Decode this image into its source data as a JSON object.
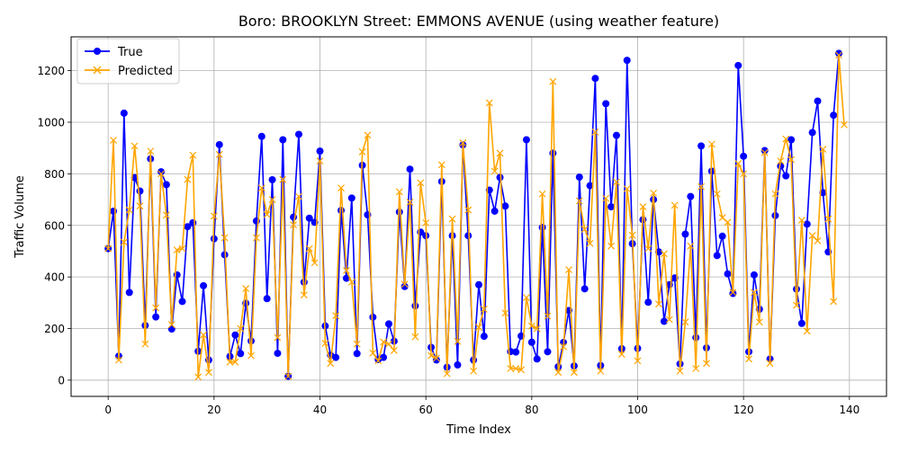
{
  "chart_data": {
    "type": "line",
    "title": "Boro: BROOKLYN Street: EMMONS AVENUE (using weather feature)",
    "xlabel": "Time Index",
    "ylabel": "Traffic Volume",
    "xlim": [
      -7,
      147
    ],
    "ylim": [
      -63,
      1331
    ],
    "xticks": [
      0,
      20,
      40,
      60,
      80,
      100,
      120,
      140
    ],
    "yticks": [
      0,
      200,
      400,
      600,
      800,
      1000,
      1200
    ],
    "grid": true,
    "legend_position": "upper-left",
    "series": [
      {
        "name": "True",
        "color": "#0000ff",
        "marker": "circle",
        "values": [
          510,
          655,
          93,
          1035,
          340,
          785,
          733,
          212,
          858,
          245,
          808,
          758,
          198,
          408,
          305,
          595,
          610,
          112,
          366,
          78,
          548,
          913,
          486,
          92,
          175,
          103,
          298,
          152,
          617,
          945,
          316,
          777,
          104,
          932,
          15,
          632,
          953,
          380,
          628,
          612,
          888,
          210,
          97,
          88,
          658,
          395,
          706,
          103,
          833,
          641,
          244,
          80,
          88,
          218,
          151,
          652,
          363,
          818,
          288,
          574,
          560,
          127,
          78,
          770,
          50,
          560,
          59,
          912,
          560,
          78,
          370,
          170,
          737,
          655,
          786,
          675,
          111,
          109,
          171,
          932,
          147,
          82,
          592,
          110,
          880,
          52,
          146,
          270,
          55,
          787,
          354,
          754,
          1170,
          57,
          1072,
          672,
          949,
          122,
          1240,
          529,
          123,
          622,
          302,
          700,
          497,
          228,
          370,
          396,
          63,
          566,
          712,
          165,
          908,
          125,
          810,
          483,
          558,
          412,
          336,
          1220,
          868,
          110,
          408,
          275,
          890,
          82,
          638,
          830,
          792,
          932,
          353,
          220,
          605,
          960,
          1082,
          727,
          497,
          1027,
          1267
        ]
      },
      {
        "name": "Predicted",
        "color": "#ffa500",
        "marker": "x",
        "values": [
          510,
          930,
          78,
          535,
          660,
          908,
          675,
          140,
          888,
          280,
          800,
          640,
          215,
          505,
          510,
          778,
          872,
          12,
          175,
          30,
          636,
          875,
          552,
          70,
          70,
          200,
          355,
          95,
          552,
          745,
          642,
          700,
          165,
          778,
          15,
          602,
          712,
          330,
          510,
          455,
          850,
          143,
          65,
          250,
          745,
          425,
          380,
          140,
          885,
          950,
          105,
          75,
          148,
          140,
          115,
          730,
          372,
          690,
          168,
          765,
          610,
          95,
          85,
          835,
          25,
          625,
          150,
          920,
          660,
          35,
          205,
          275,
          1075,
          810,
          880,
          260,
          45,
          45,
          40,
          320,
          210,
          200,
          722,
          248,
          1158,
          30,
          130,
          428,
          30,
          695,
          585,
          530,
          962,
          35,
          705,
          520,
          768,
          100,
          742,
          562,
          75,
          672,
          510,
          725,
          295,
          490,
          235,
          678,
          35,
          225,
          520,
          45,
          750,
          65,
          915,
          722,
          630,
          612,
          340,
          840,
          800,
          82,
          340,
          225,
          882,
          65,
          722,
          850,
          935,
          855,
          290,
          620,
          190,
          560,
          540,
          895,
          625,
          305,
          1260,
          990
        ]
      }
    ]
  }
}
